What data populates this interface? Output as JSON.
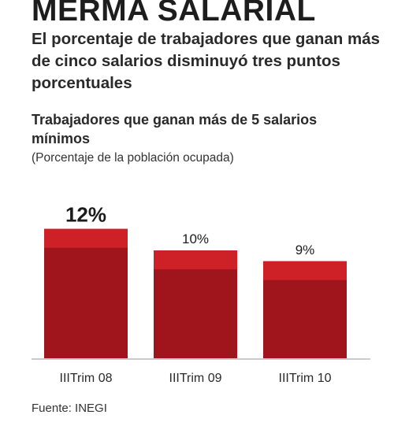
{
  "header": {
    "title": "MERMA SALARIAL",
    "subtitle": "El porcentaje de trabajadores que ganan más de cinco salarios disminuyó tres puntos porcentuales"
  },
  "chart_data": {
    "type": "bar",
    "title": "Trabajadores que ganan más de 5 salarios mínimos",
    "subtitle": "(Porcentaje de la población ocupada)",
    "categories": [
      "IIITrim 08",
      "IIITrim 09",
      "IIITrim 10"
    ],
    "values": [
      12,
      10,
      9
    ],
    "value_labels": [
      "12%",
      "10%",
      "9%"
    ],
    "highlight_label_index": 0,
    "ylim": [
      0,
      13
    ],
    "grid": false,
    "legend": "none",
    "colors": {
      "bar_body": "#a0141c",
      "bar_cap": "#cd2027",
      "axis": "#9a9a9a",
      "text": "#1b1b1b"
    }
  },
  "footer": {
    "source": "Fuente: INEGI"
  }
}
